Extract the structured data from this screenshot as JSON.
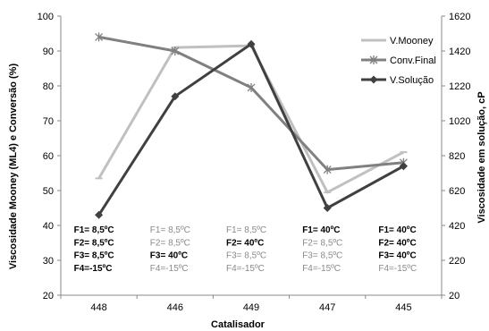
{
  "chart_data": {
    "type": "line",
    "xlabel": "Catalisador",
    "ylabel_left": "Viscosidade Mooney (ML4) e Conversão (%)",
    "ylabel_right": "Viscosidade em solução, cP",
    "categories": [
      "448",
      "446",
      "449",
      "447",
      "445"
    ],
    "ylim_left": [
      20,
      100
    ],
    "yticks_left": [
      "20",
      "30",
      "40",
      "50",
      "60",
      "70",
      "80",
      "90",
      "100"
    ],
    "ylim_right": [
      20,
      1620
    ],
    "yticks_right": [
      "20",
      "220",
      "420",
      "620",
      "820",
      "1020",
      "1220",
      "1420",
      "1620"
    ],
    "grid": false,
    "legend_position": "top-right",
    "colors": {
      "v_mooney": "#c0c0c0",
      "conv_final": "#808080",
      "v_solucao": "#404040",
      "axis": "#888888",
      "bold_text": "#000000",
      "light_text": "#8a8a8a"
    },
    "series": [
      {
        "key": "v_mooney",
        "name": "V.Mooney",
        "axis": "left",
        "marker": "dash",
        "values": [
          53.5,
          91,
          91.5,
          49.5,
          61
        ]
      },
      {
        "key": "conv_final",
        "name": "Conv.Final",
        "axis": "left",
        "marker": "star",
        "values": [
          94,
          90,
          79.5,
          56,
          58
        ]
      },
      {
        "key": "v_solucao",
        "name": "V.Solução",
        "axis": "right",
        "marker": "diamond",
        "values": [
          480,
          1160,
          1460,
          520,
          760
        ]
      }
    ],
    "annotations": [
      {
        "category": "448",
        "lines": [
          {
            "text": "F1= 8,5ºC",
            "bold": true
          },
          {
            "text": "F2= 8,5ºC",
            "bold": true
          },
          {
            "text": "F3= 8,5ºC",
            "bold": true
          },
          {
            "text": "F4=-15ºC",
            "bold": true
          }
        ]
      },
      {
        "category": "446",
        "lines": [
          {
            "text": "F1= 8,5ºC",
            "bold": false
          },
          {
            "text": "F2= 8,5ºC",
            "bold": false
          },
          {
            "text": "F3= 40ºC",
            "bold": true
          },
          {
            "text": "F4=-15ºC",
            "bold": false
          }
        ]
      },
      {
        "category": "449",
        "lines": [
          {
            "text": "F1= 8,5ºC",
            "bold": false
          },
          {
            "text": "F2= 40ºC",
            "bold": true
          },
          {
            "text": "F3= 8,5ºC",
            "bold": false
          },
          {
            "text": "F4=-15ºC",
            "bold": false
          }
        ]
      },
      {
        "category": "447",
        "lines": [
          {
            "text": "F1= 40ºC",
            "bold": true
          },
          {
            "text": "F2= 8,5ºC",
            "bold": false
          },
          {
            "text": "F3= 8,5ºC",
            "bold": false
          },
          {
            "text": "F4=-15ºC",
            "bold": false
          }
        ]
      },
      {
        "category": "445",
        "lines": [
          {
            "text": "F1= 40ºC",
            "bold": true
          },
          {
            "text": "F2= 40ºC",
            "bold": true
          },
          {
            "text": "F3= 40ºC",
            "bold": true
          },
          {
            "text": "F4=-15ºC",
            "bold": false
          }
        ]
      }
    ]
  }
}
